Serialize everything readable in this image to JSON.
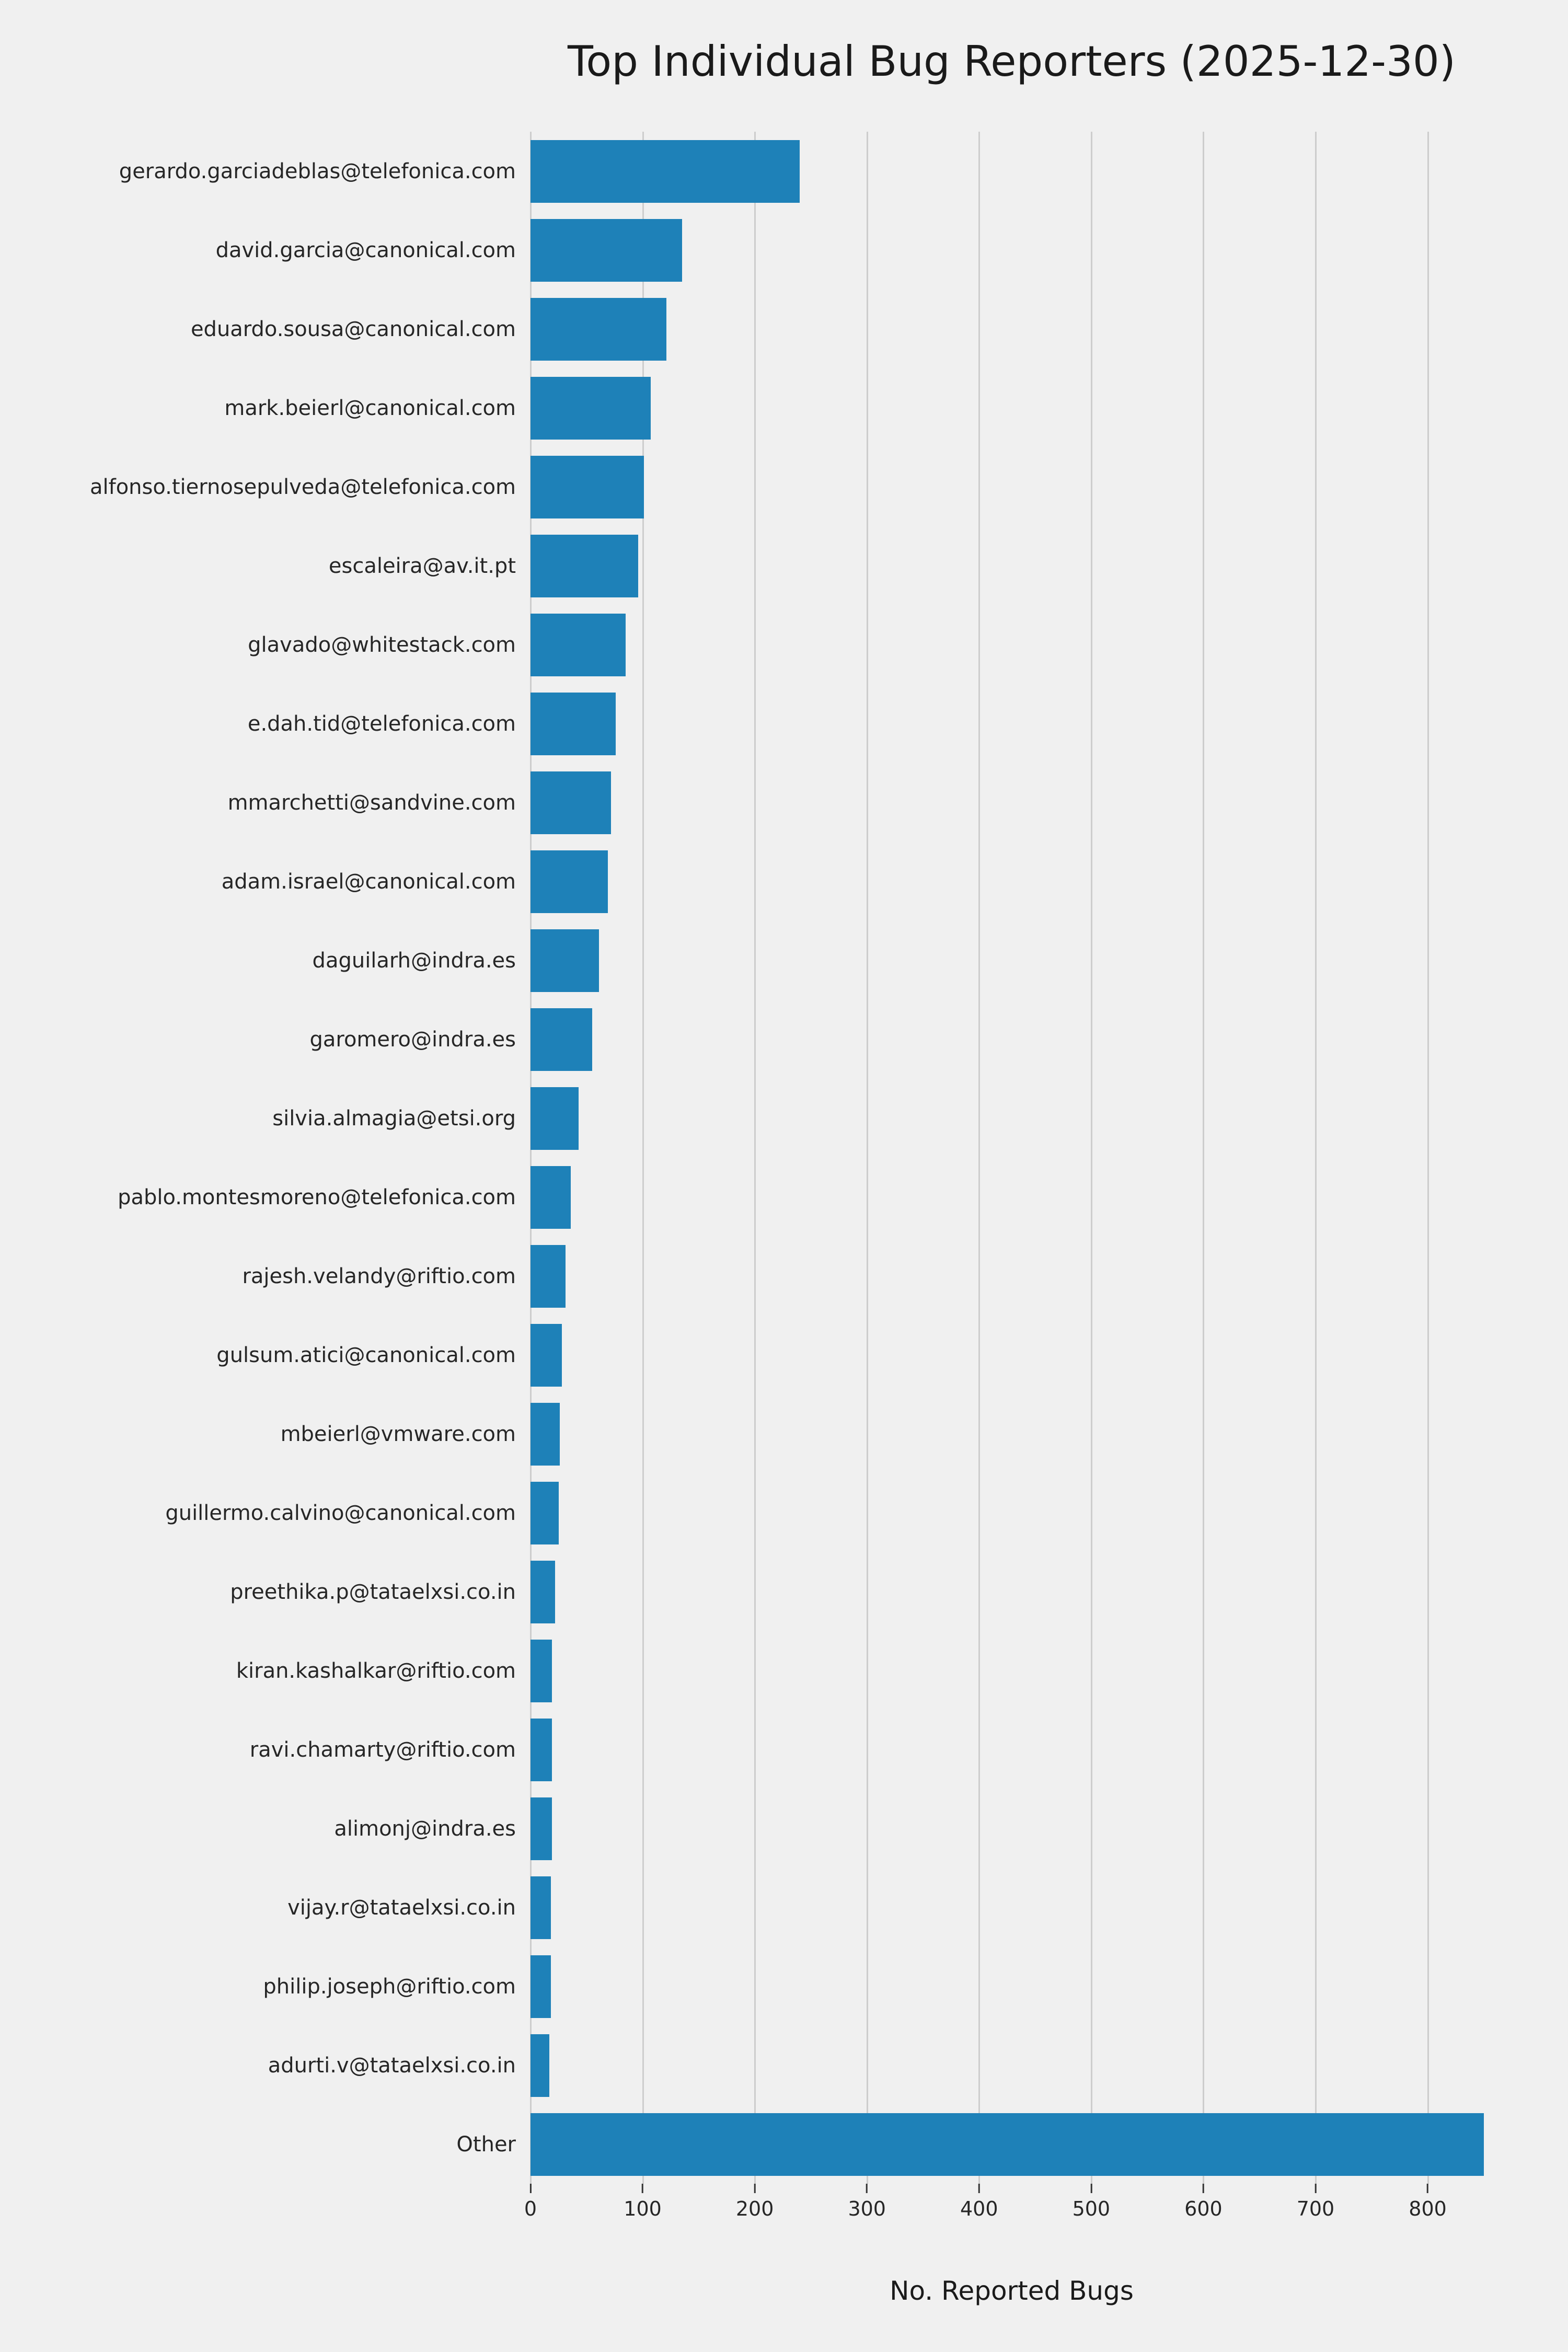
{
  "chart_data": {
    "type": "bar",
    "orientation": "horizontal",
    "title": "Top Individual Bug Reporters (2025-12-30)",
    "xlabel": "No. Reported Bugs",
    "ylabel": "",
    "xlim": [
      0,
      858
    ],
    "xticks": [
      0,
      100,
      200,
      300,
      400,
      500,
      600,
      700,
      800
    ],
    "grid": true,
    "legend": "none",
    "bar_color": "#1e81b8",
    "background_color": "#f0f0f0",
    "categories": [
      "gerardo.garciadeblas@telefonica.com",
      "david.garcia@canonical.com",
      "eduardo.sousa@canonical.com",
      "mark.beierl@canonical.com",
      "alfonso.tiernosepulveda@telefonica.com",
      "escaleira@av.it.pt",
      "glavado@whitestack.com",
      "e.dah.tid@telefonica.com",
      "mmarchetti@sandvine.com",
      "adam.israel@canonical.com",
      "daguilarh@indra.es",
      "garomero@indra.es",
      "silvia.almagia@etsi.org",
      "pablo.montesmoreno@telefonica.com",
      "rajesh.velandy@riftio.com",
      "gulsum.atici@canonical.com",
      "mbeierl@vmware.com",
      "guillermo.calvino@canonical.com",
      "preethika.p@tataelxsi.co.in",
      "kiran.kashalkar@riftio.com",
      "ravi.chamarty@riftio.com",
      "alimonj@indra.es",
      "vijay.r@tataelxsi.co.in",
      "philip.joseph@riftio.com",
      "adurti.v@tataelxsi.co.in",
      "Other"
    ],
    "values": [
      240,
      135,
      121,
      107,
      101,
      96,
      85,
      76,
      72,
      69,
      61,
      55,
      43,
      36,
      31,
      28,
      26,
      25,
      22,
      19,
      19,
      19,
      18,
      18,
      17,
      850
    ]
  }
}
